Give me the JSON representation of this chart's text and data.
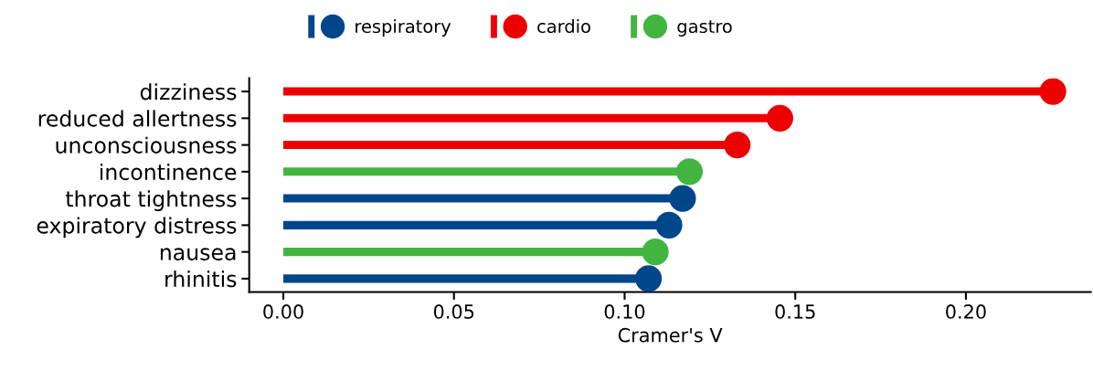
{
  "chart_data": {
    "type": "lollipop",
    "orientation": "horizontal",
    "xlabel": "Cramer's V",
    "categories": [
      "dizziness",
      "reduced allertness",
      "unconsciousness",
      "incontinence",
      "throat tightness",
      "expiratory distress",
      "nausea",
      "rhinitis"
    ],
    "series": [
      {
        "name": "respiratory",
        "color": "#00468b",
        "values": [
          null,
          null,
          null,
          null,
          0.117,
          0.113,
          null,
          0.107
        ]
      },
      {
        "name": "cardio",
        "color": "#ed0000",
        "values": [
          0.2255,
          0.1455,
          0.133,
          null,
          null,
          null,
          null,
          null
        ]
      },
      {
        "name": "gastro",
        "color": "#42b540",
        "values": [
          null,
          null,
          null,
          0.119,
          null,
          null,
          0.109,
          null
        ]
      }
    ],
    "xlim": [
      -0.01,
      0.2366
    ],
    "xticks": [
      {
        "value": 0,
        "label": "0.00"
      },
      {
        "value": 0.05,
        "label": "0.05"
      },
      {
        "value": 0.1,
        "label": "0.10"
      },
      {
        "value": 0.15,
        "label": "0.15"
      },
      {
        "value": 0.2,
        "label": "0.20"
      }
    ],
    "legend": "top",
    "grid": false,
    "marker": "circle"
  }
}
